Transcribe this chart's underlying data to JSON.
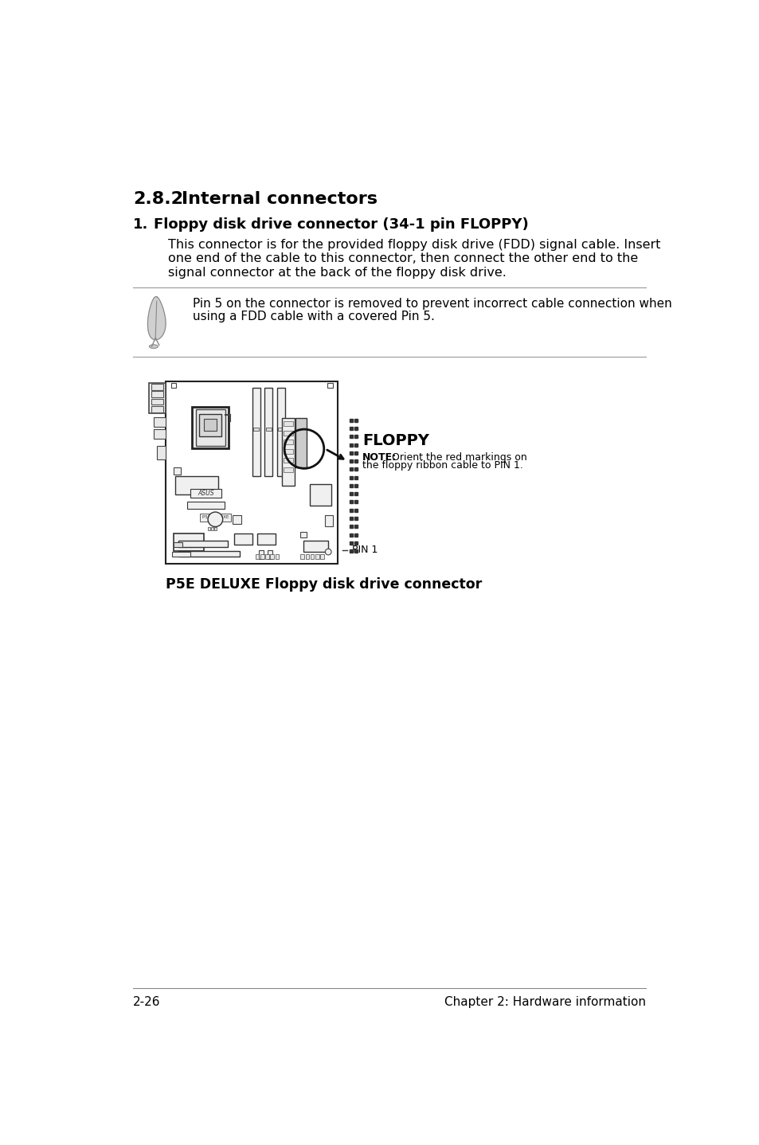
{
  "title_num": "2.8.2",
  "title_text": "Internal connectors",
  "section_num": "1.",
  "section_heading": "Floppy disk drive connector (34-1 pin FLOPPY)",
  "body_line1": "This connector is for the provided floppy disk drive (FDD) signal cable. Insert",
  "body_line2": "one end of the cable to this connector, then connect the other end to the",
  "body_line3": "signal connector at the back of the floppy disk drive.",
  "note_line1": "Pin 5 on the connector is removed to prevent incorrect cable connection when",
  "note_line2": "using a FDD cable with a covered Pin 5.",
  "floppy_label": "FLOPPY",
  "note_bold": "NOTE:",
  "note_rest": " Orient the red markings on",
  "note_line_b": "the floppy ribbon cable to PIN 1.",
  "pin1_label": "PIN 1",
  "caption": "P5E DELUXE Floppy disk drive connector",
  "footer_left": "2-26",
  "footer_right": "Chapter 2: Hardware information",
  "bg_color": "#ffffff",
  "text_color": "#000000"
}
